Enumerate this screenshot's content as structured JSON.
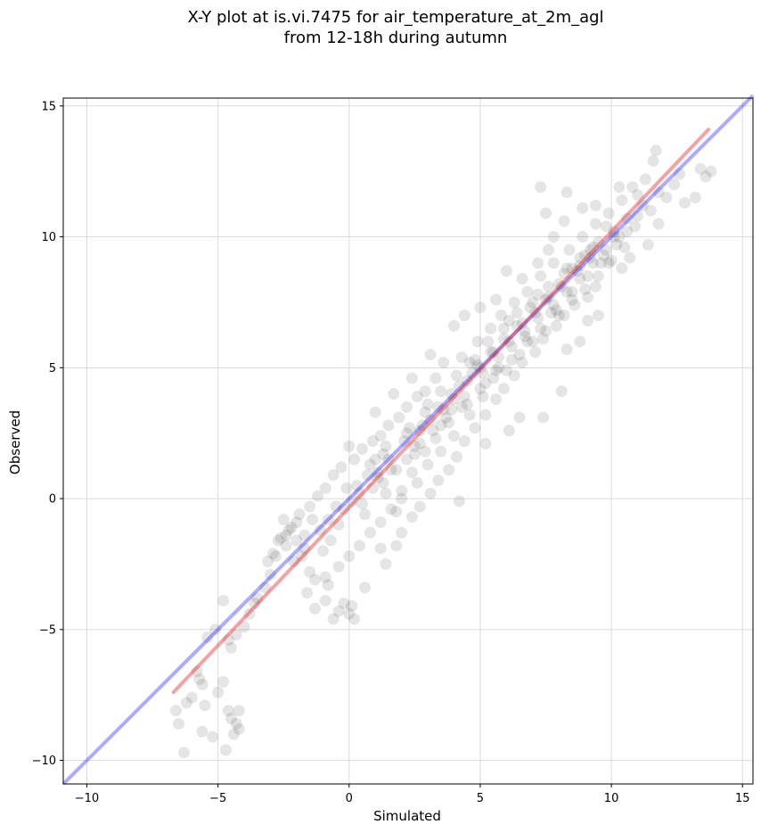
{
  "chart_data": {
    "type": "scatter",
    "title": [
      "X-Y plot at is.vi.7475 for air_temperature_at_2m_agl",
      "from 12-18h during autumn"
    ],
    "xlabel": "Simulated",
    "ylabel": "Observed",
    "xlim": [
      -10.9,
      15.4
    ],
    "ylim": [
      -10.9,
      15.3
    ],
    "xticks": [
      -10,
      -5,
      0,
      5,
      10,
      15
    ],
    "yticks": [
      -10,
      -5,
      0,
      5,
      10,
      15
    ],
    "xtick_labels": [
      "−10",
      "−5",
      "0",
      "5",
      "10",
      "15"
    ],
    "ytick_labels": [
      "−10",
      "−5",
      "0",
      "5",
      "10",
      "15"
    ],
    "grid": true,
    "point_color": "#000000",
    "point_alpha": 0.1,
    "identity_line": {
      "color": "#0000ff",
      "x": [
        -10.9,
        15.4
      ],
      "y": [
        -10.9,
        15.4
      ]
    },
    "fit_line": {
      "color": "#e41a1c",
      "x": [
        -6.7,
        13.7
      ],
      "y": [
        -7.4,
        14.1
      ]
    },
    "points": [
      [
        -6.6,
        -8.1
      ],
      [
        -6.5,
        -8.6
      ],
      [
        -6.3,
        -9.7
      ],
      [
        -6.2,
        -7.8
      ],
      [
        -6.0,
        -7.6
      ],
      [
        -5.8,
        -6.6
      ],
      [
        -5.7,
        -6.9
      ],
      [
        -5.6,
        -7.1
      ],
      [
        -5.5,
        -7.9
      ],
      [
        -5.6,
        -8.9
      ],
      [
        -5.2,
        -9.1
      ],
      [
        -5.0,
        -7.4
      ],
      [
        -4.8,
        -7.0
      ],
      [
        -4.7,
        -9.6
      ],
      [
        -4.6,
        -8.1
      ],
      [
        -4.5,
        -8.4
      ],
      [
        -4.4,
        -9.0
      ],
      [
        -4.3,
        -8.6
      ],
      [
        -4.2,
        -8.1
      ],
      [
        -4.2,
        -8.8
      ],
      [
        -4.8,
        -3.9
      ],
      [
        -4.6,
        -5.4
      ],
      [
        -4.5,
        -5.7
      ],
      [
        -4.3,
        -5.2
      ],
      [
        -5.4,
        -5.3
      ],
      [
        -5.1,
        -5.0
      ],
      [
        -4.0,
        -4.9
      ],
      [
        -3.8,
        -4.4
      ],
      [
        -3.6,
        -4.0
      ],
      [
        -3.5,
        -3.8
      ],
      [
        -3.2,
        -3.4
      ],
      [
        -3.0,
        -2.9
      ],
      [
        -3.1,
        -2.4
      ],
      [
        -2.8,
        -2.2
      ],
      [
        -2.6,
        -1.5
      ],
      [
        -2.4,
        -1.8
      ],
      [
        -2.2,
        -1.1
      ],
      [
        -2.5,
        -0.8
      ],
      [
        -2.0,
        -0.9
      ],
      [
        -1.7,
        -1.4
      ],
      [
        -1.8,
        -2.2
      ],
      [
        -1.5,
        -2.8
      ],
      [
        -1.3,
        -3.1
      ],
      [
        -1.6,
        -3.6
      ],
      [
        -1.3,
        -4.2
      ],
      [
        -0.9,
        -3.9
      ],
      [
        -0.8,
        -3.3
      ],
      [
        -0.6,
        -4.6
      ],
      [
        -0.4,
        -4.3
      ],
      [
        -0.2,
        -4.0
      ],
      [
        0.1,
        -4.1
      ],
      [
        0.2,
        -4.6
      ],
      [
        0.0,
        -4.4
      ],
      [
        0.6,
        -3.4
      ],
      [
        -0.7,
        -1.6
      ],
      [
        -0.4,
        -1.0
      ],
      [
        -0.2,
        -0.4
      ],
      [
        0.1,
        -0.1
      ],
      [
        0.4,
        0.2
      ],
      [
        0.6,
        -0.6
      ],
      [
        0.9,
        0.4
      ],
      [
        1.1,
        0.8
      ],
      [
        0.8,
        1.3
      ],
      [
        1.3,
        1.7
      ],
      [
        1.6,
        1.1
      ],
      [
        1.4,
        0.2
      ],
      [
        1.8,
        -0.5
      ],
      [
        2.0,
        0.3
      ],
      [
        2.2,
        1.5
      ],
      [
        2.5,
        2.0
      ],
      [
        2.4,
        1.0
      ],
      [
        2.7,
        2.6
      ],
      [
        2.9,
        1.8
      ],
      [
        3.1,
        3.0
      ],
      [
        3.3,
        2.3
      ],
      [
        3.6,
        3.4
      ],
      [
        3.8,
        2.9
      ],
      [
        4.0,
        3.8
      ],
      [
        4.2,
        4.3
      ],
      [
        4.5,
        3.6
      ],
      [
        4.7,
        4.8
      ],
      [
        4.9,
        5.1
      ],
      [
        5.2,
        4.4
      ],
      [
        5.4,
        5.6
      ],
      [
        5.7,
        5.0
      ],
      [
        5.9,
        6.1
      ],
      [
        6.2,
        5.8
      ],
      [
        6.4,
        6.6
      ],
      [
        6.7,
        6.2
      ],
      [
        6.9,
        7.3
      ],
      [
        7.2,
        6.9
      ],
      [
        7.5,
        7.6
      ],
      [
        7.7,
        7.1
      ],
      [
        8.0,
        8.2
      ],
      [
        8.3,
        7.9
      ],
      [
        8.5,
        8.8
      ],
      [
        8.8,
        8.4
      ],
      [
        9.0,
        9.3
      ],
      [
        9.3,
        9.0
      ],
      [
        9.5,
        9.8
      ],
      [
        9.8,
        9.5
      ],
      [
        10.1,
        10.2
      ],
      [
        10.3,
        10.0
      ],
      [
        10.6,
        10.7
      ],
      [
        10.9,
        10.4
      ],
      [
        11.2,
        11.2
      ],
      [
        11.5,
        11.0
      ],
      [
        11.8,
        11.7
      ],
      [
        12.1,
        11.5
      ],
      [
        12.4,
        12.0
      ],
      [
        11.6,
        12.9
      ],
      [
        11.7,
        13.3
      ],
      [
        13.4,
        12.6
      ],
      [
        13.6,
        12.3
      ],
      [
        13.8,
        12.5
      ],
      [
        12.8,
        11.3
      ],
      [
        13.2,
        11.5
      ],
      [
        12.6,
        12.4
      ],
      [
        11.4,
        9.7
      ],
      [
        11.8,
        10.5
      ],
      [
        10.7,
        9.2
      ],
      [
        10.4,
        8.8
      ],
      [
        9.9,
        9.0
      ],
      [
        9.4,
        8.1
      ],
      [
        9.1,
        7.7
      ],
      [
        8.6,
        7.4
      ],
      [
        8.2,
        7.0
      ],
      [
        7.9,
        6.6
      ],
      [
        7.4,
        6.1
      ],
      [
        7.1,
        5.6
      ],
      [
        6.6,
        5.2
      ],
      [
        6.3,
        4.7
      ],
      [
        5.9,
        4.2
      ],
      [
        5.6,
        3.8
      ],
      [
        5.2,
        3.2
      ],
      [
        4.8,
        2.7
      ],
      [
        4.4,
        2.2
      ],
      [
        4.1,
        1.6
      ],
      [
        3.8,
        1.1
      ],
      [
        3.4,
        0.7
      ],
      [
        3.1,
        0.2
      ],
      [
        2.7,
        -0.3
      ],
      [
        2.4,
        -0.7
      ],
      [
        2.0,
        -1.3
      ],
      [
        1.8,
        -1.8
      ],
      [
        1.4,
        -2.5
      ],
      [
        1.2,
        -1.9
      ],
      [
        4.2,
        -0.1
      ],
      [
        5.2,
        2.1
      ],
      [
        6.1,
        2.6
      ],
      [
        6.5,
        3.1
      ],
      [
        7.4,
        3.1
      ],
      [
        8.1,
        4.1
      ],
      [
        8.3,
        5.7
      ],
      [
        8.8,
        6.0
      ],
      [
        9.1,
        6.8
      ],
      [
        9.5,
        7.0
      ],
      [
        4.0,
        6.6
      ],
      [
        4.4,
        7.0
      ],
      [
        5.0,
        7.3
      ],
      [
        5.6,
        7.6
      ],
      [
        6.0,
        8.7
      ],
      [
        6.6,
        8.4
      ],
      [
        7.2,
        9.0
      ],
      [
        7.6,
        9.5
      ],
      [
        7.8,
        10.0
      ],
      [
        8.2,
        10.6
      ],
      [
        7.5,
        10.9
      ],
      [
        8.3,
        11.7
      ],
      [
        7.3,
        11.9
      ],
      [
        8.9,
        11.1
      ],
      [
        9.4,
        11.2
      ],
      [
        9.8,
        10.4
      ],
      [
        10.3,
        11.9
      ],
      [
        11.0,
        11.6
      ],
      [
        3.6,
        5.2
      ],
      [
        3.3,
        4.6
      ],
      [
        2.9,
        4.1
      ],
      [
        2.6,
        3.9
      ],
      [
        2.2,
        3.5
      ],
      [
        1.9,
        3.1
      ],
      [
        1.5,
        2.8
      ],
      [
        1.2,
        2.4
      ],
      [
        0.9,
        2.2
      ],
      [
        0.5,
        1.9
      ],
      [
        0.2,
        1.5
      ],
      [
        -0.3,
        1.2
      ],
      [
        -0.6,
        0.9
      ],
      [
        -0.9,
        0.4
      ],
      [
        -1.2,
        0.1
      ],
      [
        -1.5,
        -0.3
      ],
      [
        -1.9,
        -0.6
      ],
      [
        -2.3,
        -1.2
      ],
      [
        -2.7,
        -1.6
      ],
      [
        -2.9,
        -2.1
      ],
      [
        0.0,
        2.0
      ],
      [
        1.0,
        3.3
      ],
      [
        1.7,
        4.0
      ],
      [
        2.4,
        4.6
      ],
      [
        3.1,
        5.5
      ],
      [
        3.0,
        1.3
      ],
      [
        2.6,
        0.6
      ],
      [
        2.0,
        0.0
      ],
      [
        1.6,
        -0.4
      ],
      [
        1.2,
        -0.9
      ],
      [
        0.8,
        -1.3
      ],
      [
        0.4,
        -1.8
      ],
      [
        0.0,
        -2.2
      ],
      [
        -0.4,
        -2.6
      ],
      [
        -0.9,
        -3.0
      ],
      [
        3.5,
        1.8
      ],
      [
        4.0,
        2.4
      ],
      [
        4.6,
        3.2
      ],
      [
        5.1,
        3.9
      ],
      [
        5.5,
        4.6
      ],
      [
        6.0,
        4.9
      ],
      [
        6.5,
        5.5
      ],
      [
        7.0,
        6.0
      ],
      [
        7.5,
        6.4
      ],
      [
        8.0,
        7.0
      ],
      [
        8.5,
        7.6
      ],
      [
        9.0,
        8.0
      ],
      [
        9.5,
        8.5
      ],
      [
        10.0,
        9.1
      ],
      [
        10.5,
        9.6
      ],
      [
        4.3,
        5.4
      ],
      [
        4.9,
        6.0
      ],
      [
        5.4,
        6.5
      ],
      [
        5.8,
        7.0
      ],
      [
        6.3,
        7.5
      ],
      [
        6.8,
        7.9
      ],
      [
        7.3,
        8.5
      ],
      [
        7.8,
        9.0
      ],
      [
        8.4,
        9.5
      ],
      [
        8.9,
        10.0
      ],
      [
        9.4,
        10.5
      ],
      [
        9.9,
        10.9
      ],
      [
        10.4,
        11.4
      ],
      [
        10.8,
        11.9
      ],
      [
        11.3,
        12.2
      ],
      [
        1.5,
        1.5
      ],
      [
        2.1,
        2.2
      ],
      [
        2.8,
        2.8
      ],
      [
        3.4,
        3.5
      ],
      [
        3.9,
        4.0
      ],
      [
        4.5,
        4.5
      ],
      [
        5.0,
        5.0
      ],
      [
        5.5,
        5.6
      ],
      [
        6.1,
        6.0
      ],
      [
        6.6,
        6.7
      ],
      [
        7.1,
        7.1
      ],
      [
        7.6,
        7.7
      ],
      [
        8.1,
        8.1
      ],
      [
        8.7,
        8.7
      ],
      [
        9.2,
        9.2
      ],
      [
        1.0,
        1.5
      ],
      [
        1.4,
        2.0
      ],
      [
        2.3,
        2.7
      ],
      [
        2.9,
        3.3
      ],
      [
        3.5,
        4.1
      ],
      [
        4.1,
        4.7
      ],
      [
        4.8,
        5.3
      ],
      [
        5.3,
        6.0
      ],
      [
        5.9,
        6.5
      ],
      [
        6.4,
        7.1
      ],
      [
        7.0,
        7.5
      ],
      [
        7.6,
        8.1
      ],
      [
        8.2,
        8.6
      ],
      [
        8.8,
        9.2
      ],
      [
        9.3,
        9.6
      ],
      [
        1.8,
        1.1
      ],
      [
        2.5,
        1.7
      ],
      [
        3.2,
        2.6
      ],
      [
        3.7,
        3.1
      ],
      [
        4.3,
        3.5
      ],
      [
        5.0,
        4.2
      ],
      [
        5.6,
        4.9
      ],
      [
        6.2,
        5.3
      ],
      [
        6.8,
        6.0
      ],
      [
        7.3,
        6.5
      ],
      [
        7.9,
        7.2
      ],
      [
        8.5,
        7.9
      ],
      [
        9.1,
        8.5
      ],
      [
        9.6,
        9.0
      ],
      [
        10.2,
        9.7
      ],
      [
        2.2,
        2.5
      ],
      [
        2.7,
        2.1
      ],
      [
        3.0,
        3.6
      ],
      [
        3.5,
        2.8
      ],
      [
        3.9,
        3.4
      ],
      [
        4.4,
        3.9
      ],
      [
        4.6,
        5.2
      ],
      [
        5.1,
        4.8
      ],
      [
        5.7,
        5.4
      ],
      [
        6.1,
        6.8
      ],
      [
        6.7,
        6.4
      ],
      [
        7.2,
        7.8
      ],
      [
        7.8,
        7.4
      ],
      [
        8.3,
        8.8
      ],
      [
        8.8,
        8.9
      ],
      [
        9.2,
        9.5
      ],
      [
        9.7,
        9.3
      ],
      [
        10.1,
        10.0
      ],
      [
        10.6,
        10.2
      ],
      [
        11.0,
        10.8
      ],
      [
        0.3,
        0.5
      ],
      [
        0.7,
        0.9
      ],
      [
        1.1,
        1.0
      ],
      [
        1.3,
        0.6
      ],
      [
        0.5,
        -0.2
      ],
      [
        -0.1,
        0.4
      ],
      [
        -0.5,
        -0.3
      ],
      [
        -0.8,
        -0.8
      ],
      [
        -1.1,
        -1.2
      ],
      [
        -1.4,
        -0.8
      ],
      [
        -1.7,
        -1.9
      ],
      [
        -2.1,
        -2.4
      ],
      [
        -2.4,
        -1.4
      ],
      [
        -2.0,
        -1.6
      ],
      [
        -1.0,
        -2.0
      ]
    ]
  }
}
